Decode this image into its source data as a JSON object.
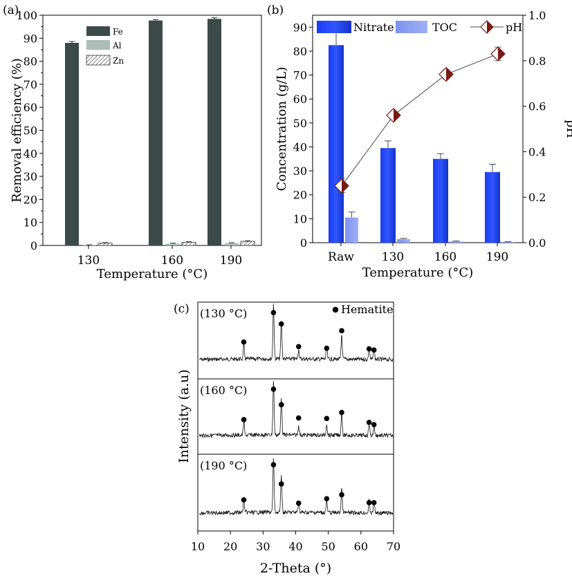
{
  "chart_data": [
    {
      "panel": "(a)",
      "type": "bar",
      "categories": [
        "130",
        "160",
        "190"
      ],
      "series": [
        {
          "name": "Fe",
          "values": [
            88.0,
            97.7,
            98.4
          ],
          "errors": [
            0.6,
            0.4,
            0.5
          ],
          "color": "#3d4a4a"
        },
        {
          "name": "Al",
          "values": [
            0.2,
            0.8,
            1.0
          ],
          "errors": [
            0.1,
            0.2,
            0.2
          ],
          "color": "#aabdb7"
        },
        {
          "name": "Zn",
          "values": [
            1.0,
            1.4,
            1.8
          ],
          "errors": [
            0.2,
            0.2,
            0.2
          ],
          "color": "hatched"
        }
      ],
      "xlabel": "Temperature (°C)",
      "ylabel": "Removal efficiency (%)",
      "ylim": [
        0,
        100
      ],
      "yticks": [
        0,
        10,
        20,
        30,
        40,
        50,
        60,
        70,
        80,
        90,
        100
      ],
      "legend": "top-center"
    },
    {
      "panel": "(b)",
      "type": "bar",
      "categories": [
        "Raw",
        "130",
        "160",
        "190"
      ],
      "series": [
        {
          "name": "Nitrate",
          "values": [
            82.5,
            39.5,
            35.0,
            29.5
          ],
          "errors": [
            5.5,
            3.0,
            2.2,
            3.3
          ],
          "color": "#1f3fe6"
        },
        {
          "name": "TOC",
          "values": [
            10.5,
            1.5,
            0.5,
            0.3
          ],
          "errors": [
            2.3,
            0.3,
            0.2,
            0.1
          ],
          "color": "#8a9ef2"
        },
        {
          "name": "pH",
          "values": [
            0.25,
            0.56,
            0.74,
            0.83
          ],
          "errors": [
            0.03,
            0.015,
            0.02,
            0.03
          ],
          "axis": "right",
          "markers": "half-filled diamond",
          "color": "#7a1a14"
        }
      ],
      "xlabel": "Temperature (°C)",
      "ylabel": "Concentration  (g/L)",
      "y2label": "pH",
      "ylim": [
        0,
        95
      ],
      "yticks": [
        0,
        10,
        20,
        30,
        40,
        50,
        60,
        70,
        80,
        90
      ],
      "y2lim": [
        0,
        1.0
      ],
      "y2ticks": [
        "0.0",
        "0.2",
        "0.4",
        "0.6",
        "0.8",
        "1.0"
      ],
      "legend": "top"
    },
    {
      "panel": "(c)",
      "type": "line",
      "xlabel": "2-Theta (°)",
      "ylabel": "Intensity (a.u)",
      "xlim": [
        10,
        70
      ],
      "xticks": [
        10,
        20,
        30,
        40,
        50,
        60,
        70
      ],
      "legend_label": "Hematite",
      "peaks": [
        24.1,
        33.2,
        35.6,
        40.9,
        49.5,
        54.1,
        62.5,
        64.0
      ],
      "peak_heights": [
        0.25,
        1.0,
        0.7,
        0.18,
        0.22,
        0.45,
        0.22,
        0.2
      ],
      "subplots": [
        {
          "label": "(130 °C)",
          "marker_heights": [
            0.48,
            1.0,
            0.8,
            0.4,
            0.37,
            0.68,
            0.36,
            0.34
          ]
        },
        {
          "label": "(160 °C)",
          "marker_heights": [
            0.45,
            1.0,
            0.72,
            0.48,
            0.47,
            0.58,
            0.4,
            0.36
          ]
        },
        {
          "label": "(190 °C)",
          "marker_heights": [
            0.38,
            1.0,
            0.66,
            0.32,
            0.4,
            0.47,
            0.33,
            0.33
          ]
        }
      ]
    }
  ]
}
